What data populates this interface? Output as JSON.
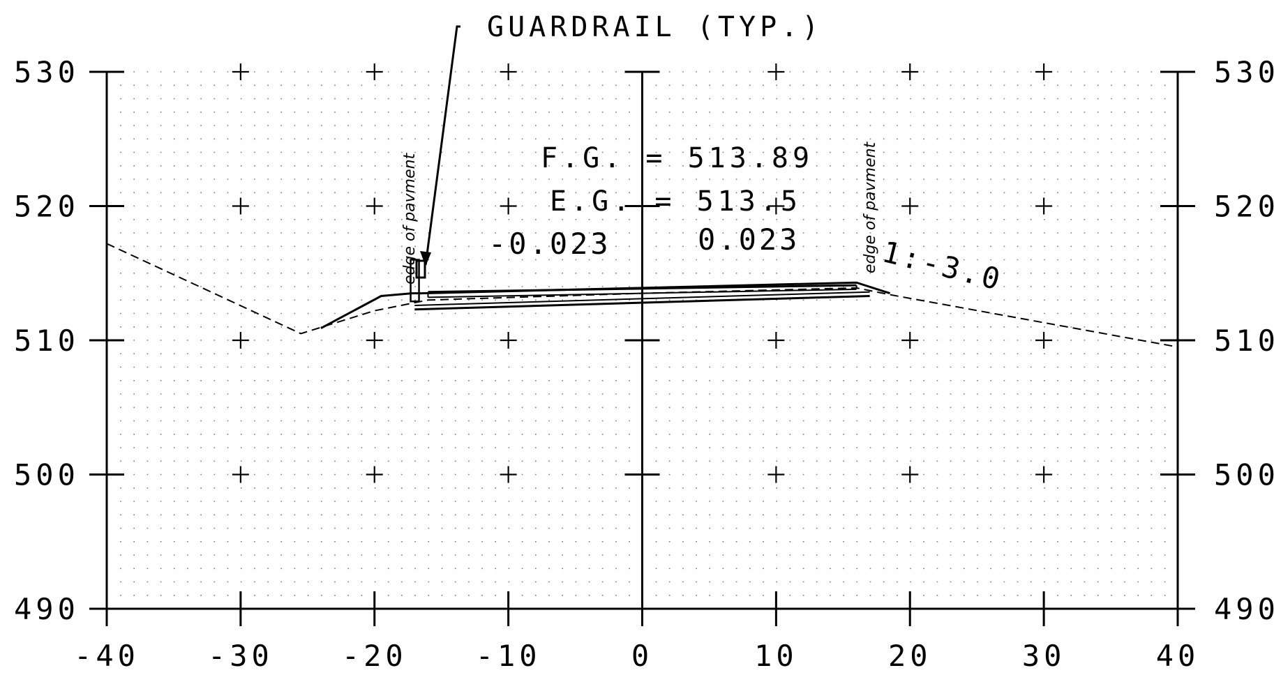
{
  "chart_data": {
    "type": "line",
    "xlim": [
      -40,
      40
    ],
    "ylim": [
      490,
      530
    ],
    "x_ticks": [
      "-40",
      "-30",
      "-20",
      "-10",
      "0",
      "10",
      "20",
      "30",
      "40"
    ],
    "y_ticks": [
      "490",
      "500",
      "510",
      "520",
      "530"
    ],
    "grid": true,
    "series": [
      {
        "style": "dashed",
        "points": [
          [
            -40,
            517.2
          ],
          [
            -25.5,
            510.5
          ],
          [
            -20,
            512.2
          ],
          [
            -16,
            513.0
          ],
          [
            0,
            513.5
          ],
          [
            16,
            513.9
          ],
          [
            18.5,
            513.4
          ],
          [
            40,
            509.5
          ]
        ]
      },
      {
        "style": "solid",
        "points": [
          [
            -24,
            510.9
          ],
          [
            -19.5,
            513.3
          ],
          [
            -17.2,
            513.5
          ],
          [
            -16.5,
            513.5
          ],
          [
            0,
            513.9
          ],
          [
            16,
            514.3
          ],
          [
            18.5,
            513.5
          ]
        ]
      }
    ],
    "annotations": {
      "guardrail_label": "GUARDRAIL (TYP.)",
      "fg_label": "F.G. = 513.89",
      "eg_label": "E.G. = 513.5",
      "left_grade": "-0.023",
      "right_grade": "0.023",
      "side_slope": "1:-3.0",
      "edge_left": "edge of pavment",
      "edge_right": "edge of pavment"
    }
  }
}
